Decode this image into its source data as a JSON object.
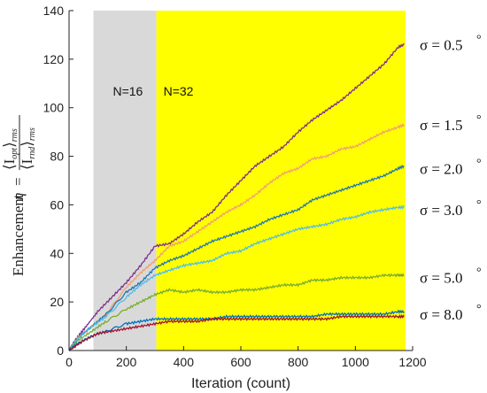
{
  "chart_data": {
    "type": "line",
    "xlabel": "Iteration (count)",
    "ylabel_prefix": "Enhancement",
    "ylabel_eta": "η",
    "ylabel_eq": "=",
    "ylabel_num": "⟨I",
    "ylabel_num_sub": "opt",
    "ylabel_num_close": "⟩",
    "ylabel_num_rms": "rms",
    "ylabel_den": "⟨I",
    "ylabel_den_sub": "rnd",
    "ylabel_den_close": "⟩",
    "ylabel_den_rms": "rms",
    "xlim": [
      0,
      1200
    ],
    "ylim": [
      0,
      140
    ],
    "xticks": [
      0,
      200,
      400,
      600,
      800,
      1000,
      1200
    ],
    "yticks": [
      0,
      20,
      40,
      60,
      80,
      100,
      120,
      140
    ],
    "regions": [
      {
        "label": "N=16",
        "x_start": 85,
        "x_end": 305,
        "color": "#d9d9d9"
      },
      {
        "label": "N=32",
        "x_start": 305,
        "x_end": 1175,
        "color": "#ffff00"
      }
    ],
    "series": [
      {
        "name": "σ = 0.5",
        "color": "#7e2f8e",
        "points": [
          [
            0,
            0
          ],
          [
            20,
            4
          ],
          [
            60,
            10
          ],
          [
            100,
            16
          ],
          [
            150,
            22
          ],
          [
            200,
            28
          ],
          [
            250,
            35
          ],
          [
            300,
            43
          ],
          [
            350,
            44
          ],
          [
            400,
            48
          ],
          [
            450,
            53
          ],
          [
            500,
            57
          ],
          [
            550,
            64
          ],
          [
            600,
            70
          ],
          [
            650,
            76
          ],
          [
            700,
            80
          ],
          [
            750,
            84
          ],
          [
            800,
            90
          ],
          [
            850,
            95
          ],
          [
            900,
            99
          ],
          [
            950,
            103
          ],
          [
            1000,
            108
          ],
          [
            1050,
            113
          ],
          [
            1100,
            118
          ],
          [
            1150,
            125
          ],
          [
            1170,
            126
          ]
        ]
      },
      {
        "name": "σ = 1.5",
        "color": "#f0a070",
        "points": [
          [
            0,
            0
          ],
          [
            30,
            5
          ],
          [
            80,
            10
          ],
          [
            130,
            15
          ],
          [
            200,
            26
          ],
          [
            250,
            32
          ],
          [
            300,
            37
          ],
          [
            350,
            43
          ],
          [
            400,
            45
          ],
          [
            450,
            49
          ],
          [
            500,
            53
          ],
          [
            550,
            57
          ],
          [
            600,
            60
          ],
          [
            650,
            64
          ],
          [
            700,
            69
          ],
          [
            750,
            73
          ],
          [
            800,
            75
          ],
          [
            850,
            79
          ],
          [
            900,
            80
          ],
          [
            950,
            83
          ],
          [
            1000,
            84
          ],
          [
            1050,
            87
          ],
          [
            1100,
            90
          ],
          [
            1150,
            92
          ],
          [
            1170,
            93
          ]
        ]
      },
      {
        "name": "σ = 2.0",
        "color": "#1f77b4",
        "points": [
          [
            0,
            0
          ],
          [
            30,
            5
          ],
          [
            80,
            10
          ],
          [
            130,
            15
          ],
          [
            200,
            24
          ],
          [
            250,
            28
          ],
          [
            300,
            34
          ],
          [
            350,
            37
          ],
          [
            400,
            39
          ],
          [
            450,
            42
          ],
          [
            500,
            45
          ],
          [
            550,
            47
          ],
          [
            600,
            49
          ],
          [
            650,
            51
          ],
          [
            700,
            54
          ],
          [
            750,
            56
          ],
          [
            800,
            58
          ],
          [
            850,
            62
          ],
          [
            900,
            64
          ],
          [
            950,
            66
          ],
          [
            1000,
            68
          ],
          [
            1050,
            70
          ],
          [
            1100,
            72
          ],
          [
            1150,
            75
          ],
          [
            1170,
            76
          ]
        ]
      },
      {
        "name": "σ = 3.0",
        "color": "#4dbeee",
        "points": [
          [
            0,
            0
          ],
          [
            30,
            5
          ],
          [
            80,
            10
          ],
          [
            130,
            14
          ],
          [
            200,
            22
          ],
          [
            250,
            27
          ],
          [
            300,
            31
          ],
          [
            350,
            33
          ],
          [
            400,
            35
          ],
          [
            450,
            36
          ],
          [
            500,
            37
          ],
          [
            550,
            40
          ],
          [
            600,
            41
          ],
          [
            650,
            44
          ],
          [
            700,
            46
          ],
          [
            750,
            48
          ],
          [
            800,
            50
          ],
          [
            850,
            51
          ],
          [
            900,
            52
          ],
          [
            950,
            54
          ],
          [
            1000,
            55
          ],
          [
            1050,
            57
          ],
          [
            1100,
            58
          ],
          [
            1150,
            59
          ],
          [
            1170,
            59
          ]
        ]
      },
      {
        "name": "σ = 5.0",
        "color": "#77ac30",
        "points": [
          [
            0,
            0
          ],
          [
            30,
            4
          ],
          [
            80,
            8
          ],
          [
            130,
            12
          ],
          [
            200,
            17
          ],
          [
            250,
            20
          ],
          [
            300,
            23
          ],
          [
            350,
            25
          ],
          [
            400,
            24
          ],
          [
            450,
            25
          ],
          [
            500,
            24
          ],
          [
            550,
            24
          ],
          [
            600,
            25
          ],
          [
            650,
            25
          ],
          [
            700,
            26
          ],
          [
            750,
            27
          ],
          [
            800,
            27
          ],
          [
            850,
            29
          ],
          [
            900,
            29
          ],
          [
            950,
            30
          ],
          [
            1000,
            30
          ],
          [
            1050,
            30
          ],
          [
            1100,
            31
          ],
          [
            1150,
            31
          ],
          [
            1170,
            31
          ]
        ]
      },
      {
        "name": "σ = 8.0",
        "color": "#0072bd",
        "points": [
          [
            0,
            0
          ],
          [
            30,
            3
          ],
          [
            80,
            6
          ],
          [
            130,
            8
          ],
          [
            200,
            11
          ],
          [
            250,
            12
          ],
          [
            300,
            13
          ],
          [
            350,
            13
          ],
          [
            400,
            13
          ],
          [
            450,
            13
          ],
          [
            500,
            13
          ],
          [
            550,
            14
          ],
          [
            600,
            14
          ],
          [
            650,
            14
          ],
          [
            700,
            14
          ],
          [
            750,
            14
          ],
          [
            800,
            14
          ],
          [
            850,
            14
          ],
          [
            900,
            15
          ],
          [
            950,
            15
          ],
          [
            1000,
            15
          ],
          [
            1050,
            15
          ],
          [
            1100,
            15
          ],
          [
            1150,
            16
          ],
          [
            1170,
            16
          ]
        ]
      },
      {
        "name": "",
        "color": "#a2142f",
        "points": [
          [
            0,
            0
          ],
          [
            50,
            4
          ],
          [
            100,
            7
          ],
          [
            150,
            8
          ],
          [
            200,
            9
          ],
          [
            250,
            10
          ],
          [
            300,
            11
          ],
          [
            350,
            12
          ],
          [
            400,
            12
          ],
          [
            450,
            12
          ],
          [
            500,
            13
          ],
          [
            550,
            13
          ],
          [
            600,
            13
          ],
          [
            650,
            13
          ],
          [
            700,
            13
          ],
          [
            750,
            13
          ],
          [
            800,
            13
          ],
          [
            850,
            13
          ],
          [
            900,
            13
          ],
          [
            950,
            14
          ],
          [
            1000,
            14
          ],
          [
            1050,
            14
          ],
          [
            1100,
            14
          ],
          [
            1150,
            14
          ],
          [
            1170,
            14
          ]
        ]
      }
    ],
    "right_labels": [
      {
        "text": "σ = 0.5",
        "deg": "°",
        "y": 126
      },
      {
        "text": "σ = 1.5",
        "deg": "°",
        "y": 93
      },
      {
        "text": "σ = 2.0",
        "deg": "°",
        "y": 75
      },
      {
        "text": "σ = 3.0",
        "deg": "°",
        "y": 58
      },
      {
        "text": "σ = 5.0",
        "deg": "°",
        "y": 30
      },
      {
        "text": "σ = 8.0",
        "deg": "°",
        "y": 15
      }
    ]
  }
}
